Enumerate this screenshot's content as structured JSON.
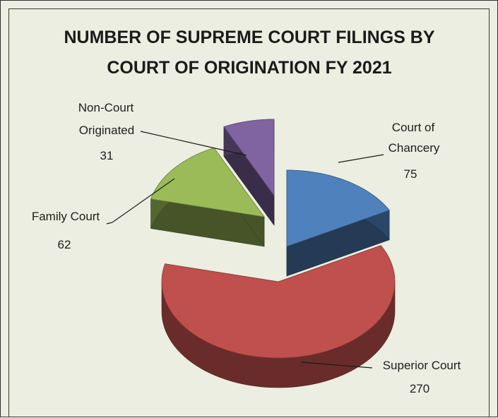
{
  "chart_data": {
    "type": "pie",
    "title_line1": "NUMBER OF SUPREME COURT FILINGS BY",
    "title_line2": "COURT OF ORIGINATION FY 2021",
    "slices": [
      {
        "name": "Court of Chancery",
        "label_lines": [
          "Court of",
          "Chancery"
        ],
        "value": 75,
        "value_text": "75",
        "color": "#4f81bd"
      },
      {
        "name": "Superior Court",
        "label_lines": [
          "Superior Court"
        ],
        "value": 270,
        "value_text": "270",
        "color": "#c0504d"
      },
      {
        "name": "Family Court",
        "label_lines": [
          "Family Court"
        ],
        "value": 62,
        "value_text": "62",
        "color": "#9bbb59"
      },
      {
        "name": "Non-Court Originated",
        "label_lines": [
          "Non-Court",
          "Originated"
        ],
        "value": 31,
        "value_text": "31",
        "color": "#8064a2"
      }
    ],
    "style": "3d-exploded-pie"
  }
}
